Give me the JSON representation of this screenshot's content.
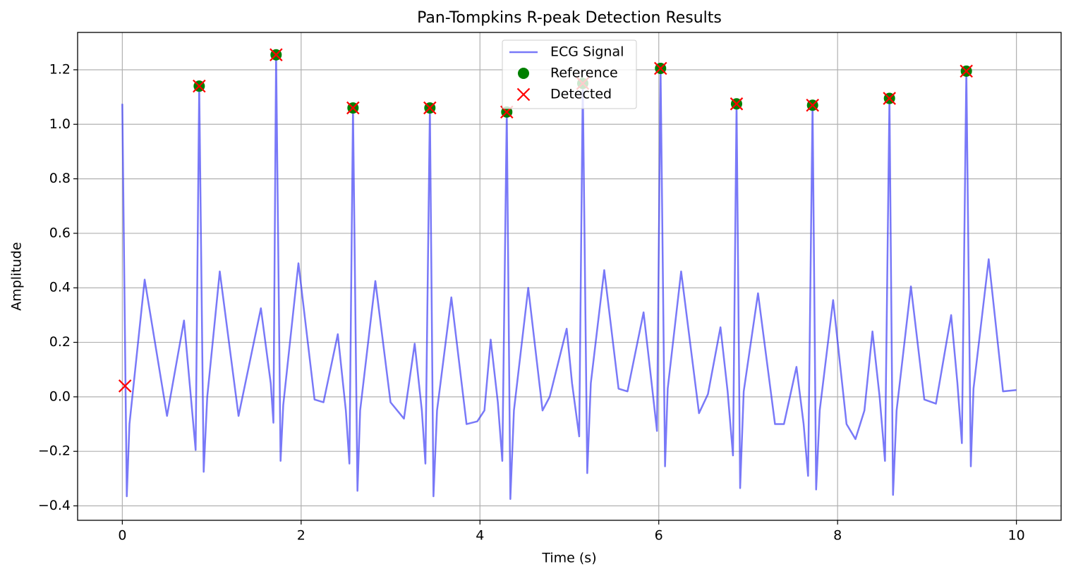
{
  "chart_data": {
    "type": "line",
    "title": "Pan-Tompkins R-peak Detection Results",
    "xlabel": "Time (s)",
    "ylabel": "Amplitude",
    "xlim": [
      -0.5,
      10.5
    ],
    "ylim": [
      -0.453,
      1.337
    ],
    "xticks": [
      0,
      2,
      4,
      6,
      8,
      10
    ],
    "yticks": [
      {
        "value": -0.4,
        "label": "−0.4"
      },
      {
        "value": -0.2,
        "label": "−0.2"
      },
      {
        "value": 0,
        "label": "0.0"
      },
      {
        "value": 0.2,
        "label": "0.2"
      },
      {
        "value": 0.4,
        "label": "0.4"
      },
      {
        "value": 0.6,
        "label": "0.6"
      },
      {
        "value": 0.8,
        "label": "0.8"
      },
      {
        "value": 1.0,
        "label": "1.0"
      },
      {
        "value": 1.2,
        "label": "1.2"
      }
    ],
    "grid": true,
    "legend": "upper center",
    "series": [
      {
        "name": "ECG Signal",
        "color": "#4040f5",
        "kind": "line",
        "x": [
          0,
          0.05,
          0.08,
          0.25,
          0.5,
          0.69,
          0.82,
          0.86,
          0.91,
          0.95,
          1.09,
          1.3,
          1.55,
          1.66,
          1.69,
          1.72,
          1.77,
          1.8,
          1.97,
          2.15,
          2.25,
          2.41,
          2.5,
          2.54,
          2.58,
          2.63,
          2.66,
          2.83,
          3.0,
          3.15,
          3.27,
          3.35,
          3.39,
          3.44,
          3.48,
          3.52,
          3.68,
          3.85,
          3.97,
          4.05,
          4.12,
          4.2,
          4.25,
          4.3,
          4.34,
          4.38,
          4.54,
          4.7,
          4.78,
          4.97,
          5.03,
          5.11,
          5.15,
          5.2,
          5.24,
          5.39,
          5.55,
          5.65,
          5.83,
          5.92,
          5.98,
          6.02,
          6.07,
          6.1,
          6.25,
          6.45,
          6.55,
          6.69,
          6.77,
          6.83,
          6.87,
          6.91,
          6.95,
          7.11,
          7.3,
          7.4,
          7.54,
          7.62,
          7.67,
          7.72,
          7.76,
          7.8,
          7.95,
          8.1,
          8.2,
          8.3,
          8.39,
          8.47,
          8.53,
          8.58,
          8.62,
          8.66,
          8.82,
          8.97,
          9.1,
          9.27,
          9.34,
          9.39,
          9.44,
          9.49,
          9.52,
          9.69,
          9.85,
          10.0
        ],
        "values": [
          1.075,
          -0.365,
          -0.1,
          0.43,
          -0.07,
          0.28,
          -0.195,
          1.14,
          -0.275,
          0,
          0.46,
          -0.07,
          0.325,
          0.05,
          -0.095,
          1.255,
          -0.235,
          -0.03,
          0.49,
          -0.01,
          -0.02,
          0.23,
          -0.05,
          -0.245,
          1.06,
          -0.345,
          -0.05,
          0.425,
          -0.02,
          -0.08,
          0.195,
          -0.05,
          -0.245,
          1.06,
          -0.365,
          -0.05,
          0.365,
          -0.1,
          -0.09,
          -0.05,
          0.21,
          -0.02,
          -0.235,
          1.045,
          -0.375,
          -0.05,
          0.4,
          -0.05,
          0,
          0.25,
          0.05,
          -0.145,
          1.15,
          -0.28,
          0.05,
          0.465,
          0.03,
          0.02,
          0.31,
          0.05,
          -0.125,
          1.205,
          -0.255,
          0.03,
          0.46,
          -0.06,
          0.01,
          0.255,
          0.02,
          -0.215,
          1.075,
          -0.335,
          0.02,
          0.38,
          -0.1,
          -0.1,
          0.11,
          -0.1,
          -0.29,
          1.07,
          -0.34,
          -0.05,
          0.355,
          -0.1,
          -0.155,
          -0.05,
          0.24,
          0,
          -0.235,
          1.095,
          -0.36,
          -0.05,
          0.405,
          -0.01,
          -0.025,
          0.3,
          0.05,
          -0.17,
          1.195,
          -0.255,
          0.03,
          0.505,
          0.02,
          0.025
        ]
      },
      {
        "name": "Reference",
        "color": "#008000",
        "kind": "scatter",
        "x": [
          0.86,
          1.72,
          2.58,
          3.44,
          4.3,
          5.15,
          6.02,
          6.87,
          7.72,
          8.58,
          9.44
        ],
        "values": [
          1.14,
          1.255,
          1.06,
          1.06,
          1.045,
          1.15,
          1.205,
          1.075,
          1.07,
          1.095,
          1.195
        ]
      },
      {
        "name": "Detected",
        "color": "#ff0000",
        "kind": "cross",
        "x": [
          0.03,
          0.86,
          1.72,
          2.58,
          3.44,
          4.3,
          5.15,
          6.02,
          6.87,
          7.72,
          8.58,
          9.44
        ],
        "values": [
          0.04,
          1.14,
          1.255,
          1.06,
          1.06,
          1.045,
          1.15,
          1.205,
          1.075,
          1.07,
          1.095,
          1.195
        ]
      }
    ]
  }
}
